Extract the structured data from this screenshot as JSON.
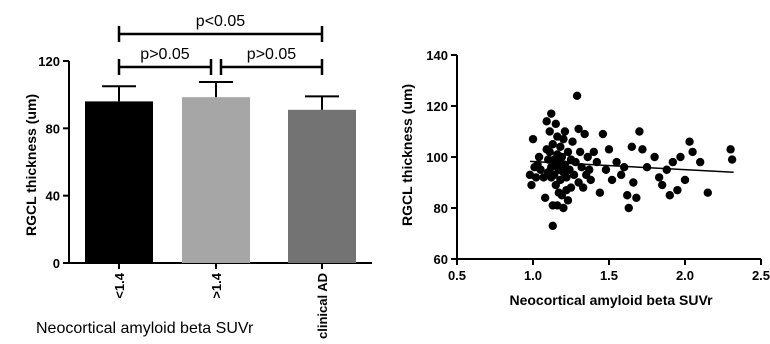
{
  "chart_data": [
    {
      "type": "bar",
      "categories": [
        "<1.4",
        ">1.4",
        "clinical AD"
      ],
      "values": [
        96,
        98.5,
        91
      ],
      "errors": [
        9,
        9,
        8
      ],
      "colors": [
        "#000000",
        "#a6a6a6",
        "#737373"
      ],
      "ylabel": "RGCL thickness (um)",
      "xlabel": "Neocortical amyloid beta SUVr",
      "ylim": [
        0,
        120
      ],
      "yticks": [
        0,
        40,
        80,
        120
      ],
      "comparisons": [
        {
          "from": 0,
          "to": 1,
          "label": "p>0.05"
        },
        {
          "from": 1,
          "to": 2,
          "label": "p>0.05"
        },
        {
          "from": 0,
          "to": 2,
          "label": "p<0.05"
        }
      ]
    },
    {
      "type": "scatter",
      "xlabel": "Neocortical amyloid beta SUVr",
      "ylabel": "RGCL thickness (um)",
      "xlim": [
        0.5,
        2.5
      ],
      "ylim": [
        60,
        140
      ],
      "xticks": [
        "0.5",
        "1.0",
        "1.5",
        "2.0",
        "2.5"
      ],
      "yticks": [
        "60",
        "80",
        "100",
        "120",
        "140"
      ],
      "points": [
        [
          0.98,
          93
        ],
        [
          0.99,
          89
        ],
        [
          1.0,
          107
        ],
        [
          1.01,
          96
        ],
        [
          1.02,
          92
        ],
        [
          1.03,
          97
        ],
        [
          1.04,
          100
        ],
        [
          1.05,
          95
        ],
        [
          1.07,
          92
        ],
        [
          1.08,
          84
        ],
        [
          1.09,
          114
        ],
        [
          1.09,
          103
        ],
        [
          1.1,
          99
        ],
        [
          1.1,
          94
        ],
        [
          1.11,
          110
        ],
        [
          1.11,
          102
        ],
        [
          1.12,
          96
        ],
        [
          1.12,
          92
        ],
        [
          1.12,
          117
        ],
        [
          1.13,
          81
        ],
        [
          1.13,
          73
        ],
        [
          1.13,
          105
        ],
        [
          1.14,
          99
        ],
        [
          1.14,
          93
        ],
        [
          1.15,
          113
        ],
        [
          1.15,
          97
        ],
        [
          1.15,
          89
        ],
        [
          1.16,
          108
        ],
        [
          1.16,
          101
        ],
        [
          1.16,
          81
        ],
        [
          1.17,
          95
        ],
        [
          1.17,
          86
        ],
        [
          1.18,
          104
        ],
        [
          1.18,
          98
        ],
        [
          1.18,
          91
        ],
        [
          1.19,
          100
        ],
        [
          1.19,
          85
        ],
        [
          1.2,
          107
        ],
        [
          1.2,
          94
        ],
        [
          1.2,
          80
        ],
        [
          1.21,
          110
        ],
        [
          1.21,
          97
        ],
        [
          1.22,
          92
        ],
        [
          1.22,
          87
        ],
        [
          1.23,
          102
        ],
        [
          1.23,
          83
        ],
        [
          1.24,
          95
        ],
        [
          1.25,
          99
        ],
        [
          1.25,
          88
        ],
        [
          1.26,
          106
        ],
        [
          1.27,
          93
        ],
        [
          1.28,
          98
        ],
        [
          1.29,
          124
        ],
        [
          1.3,
          111
        ],
        [
          1.3,
          90
        ],
        [
          1.31,
          102
        ],
        [
          1.32,
          96
        ],
        [
          1.33,
          88
        ],
        [
          1.34,
          109
        ],
        [
          1.35,
          93
        ],
        [
          1.36,
          100
        ],
        [
          1.37,
          95
        ],
        [
          1.38,
          91
        ],
        [
          1.4,
          102
        ],
        [
          1.42,
          98
        ],
        [
          1.44,
          86
        ],
        [
          1.46,
          109
        ],
        [
          1.48,
          95
        ],
        [
          1.5,
          103
        ],
        [
          1.52,
          91
        ],
        [
          1.55,
          98
        ],
        [
          1.58,
          93
        ],
        [
          1.6,
          96
        ],
        [
          1.62,
          85
        ],
        [
          1.63,
          80
        ],
        [
          1.65,
          104
        ],
        [
          1.66,
          90
        ],
        [
          1.68,
          84
        ],
        [
          1.7,
          110
        ],
        [
          1.72,
          103
        ],
        [
          1.75,
          96
        ],
        [
          1.8,
          100
        ],
        [
          1.83,
          92
        ],
        [
          1.85,
          89
        ],
        [
          1.88,
          95
        ],
        [
          1.9,
          85
        ],
        [
          1.92,
          98
        ],
        [
          1.95,
          87
        ],
        [
          1.97,
          100
        ],
        [
          2.0,
          91
        ],
        [
          2.03,
          106
        ],
        [
          2.05,
          102
        ],
        [
          2.1,
          98
        ],
        [
          2.15,
          86
        ],
        [
          2.3,
          103
        ],
        [
          2.31,
          99
        ]
      ],
      "fit": {
        "x": [
          0.98,
          2.32
        ],
        "y": [
          98.3,
          94
        ]
      }
    }
  ]
}
